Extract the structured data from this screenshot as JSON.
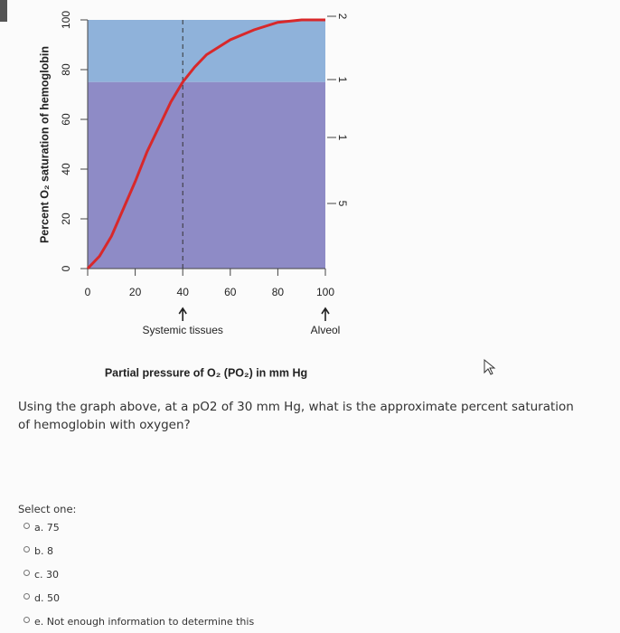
{
  "chart_data": {
    "type": "line",
    "xlabel": "Partial pressure of O₂ (PO₂) in mm Hg",
    "ylabel": "Percent O₂ saturation of hemoglobin",
    "x": [
      0,
      5,
      10,
      15,
      20,
      25,
      30,
      35,
      40,
      45,
      50,
      60,
      70,
      80,
      90,
      100
    ],
    "series": [
      {
        "color": "#d8282a",
        "values": [
          0,
          5,
          13,
          24,
          35,
          47,
          57,
          67,
          75,
          81,
          86,
          92,
          96,
          99,
          100,
          100
        ]
      }
    ],
    "xlim": [
      0,
      100
    ],
    "xticks": [
      0,
      20,
      40,
      60,
      80,
      100
    ],
    "ylim": [
      0,
      100
    ],
    "yticks": [
      0,
      20,
      40,
      60,
      80,
      100
    ],
    "bands": [
      {
        "from": 75,
        "to": 100,
        "color": "#8fb2da"
      },
      {
        "from": 0,
        "to": 75,
        "color": "#8e8bc6"
      }
    ],
    "vline": 40,
    "annotations": [
      {
        "x": 40,
        "text": "Systemic tissues"
      },
      {
        "x": 100,
        "text": "Alveol"
      }
    ],
    "right_labels": [
      "2",
      "1",
      "1",
      "5"
    ]
  },
  "question": {
    "text": "Using the graph above, at a pO2 of 30 mm Hg, what is the approximate percent saturation of hemoglobin with oxygen?",
    "prompt": "Select one:",
    "options": [
      "a. 75",
      "b. 8",
      "c. 30",
      "d. 50",
      "e. Not enough information to determine this"
    ]
  }
}
